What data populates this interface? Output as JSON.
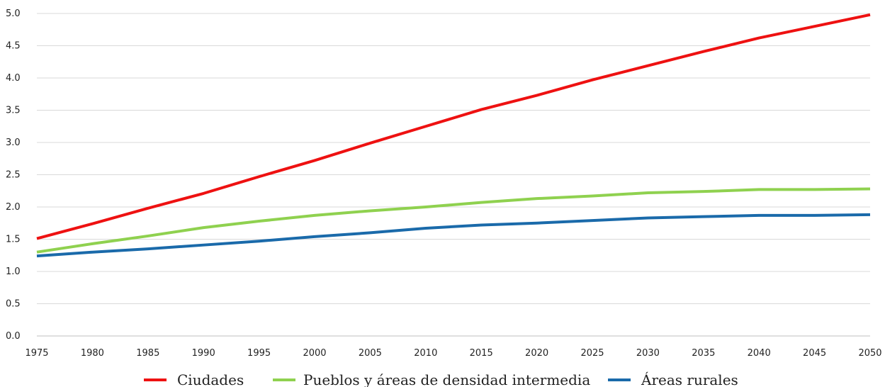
{
  "chart_data": {
    "type": "line",
    "title": "",
    "xlabel": "",
    "ylabel": "",
    "x": [
      1975,
      1980,
      1985,
      1990,
      1995,
      2000,
      2005,
      2010,
      2015,
      2020,
      2025,
      2030,
      2035,
      2040,
      2045,
      2050
    ],
    "x_tick_labels": [
      "1975",
      "1980",
      "1985",
      "1990",
      "1995",
      "2000",
      "2005",
      "2010",
      "2015",
      "2020",
      "2025",
      "2030",
      "2035",
      "2040",
      "2045",
      "2050"
    ],
    "ylim": [
      0,
      5
    ],
    "y_ticks": [
      0.0,
      0.5,
      1.0,
      1.5,
      2.0,
      2.5,
      3.0,
      3.5,
      4.0,
      4.5,
      5.0
    ],
    "y_tick_labels": [
      "0.0",
      "0.5",
      "1.0",
      "1.5",
      "2.0",
      "2.5",
      "3.0",
      "3.5",
      "4.0",
      "4.5",
      "5.0"
    ],
    "grid": "horizontal",
    "legend_position": "bottom",
    "series": [
      {
        "name": "Ciudades",
        "color": "#ee1111",
        "values": [
          1.51,
          1.74,
          1.98,
          2.21,
          2.47,
          2.72,
          2.99,
          3.25,
          3.51,
          3.73,
          3.97,
          4.19,
          4.41,
          4.62,
          4.8,
          4.98
        ]
      },
      {
        "name": "Pueblos y áreas de densidad intermedia",
        "color": "#8fd14f",
        "values": [
          1.3,
          1.43,
          1.55,
          1.68,
          1.78,
          1.87,
          1.94,
          2.0,
          2.07,
          2.13,
          2.17,
          2.22,
          2.24,
          2.27,
          2.27,
          2.28
        ]
      },
      {
        "name": "Áreas rurales",
        "color": "#1a6aaa",
        "values": [
          1.24,
          1.3,
          1.35,
          1.41,
          1.47,
          1.54,
          1.6,
          1.67,
          1.72,
          1.75,
          1.79,
          1.83,
          1.85,
          1.87,
          1.87,
          1.88
        ]
      }
    ]
  }
}
